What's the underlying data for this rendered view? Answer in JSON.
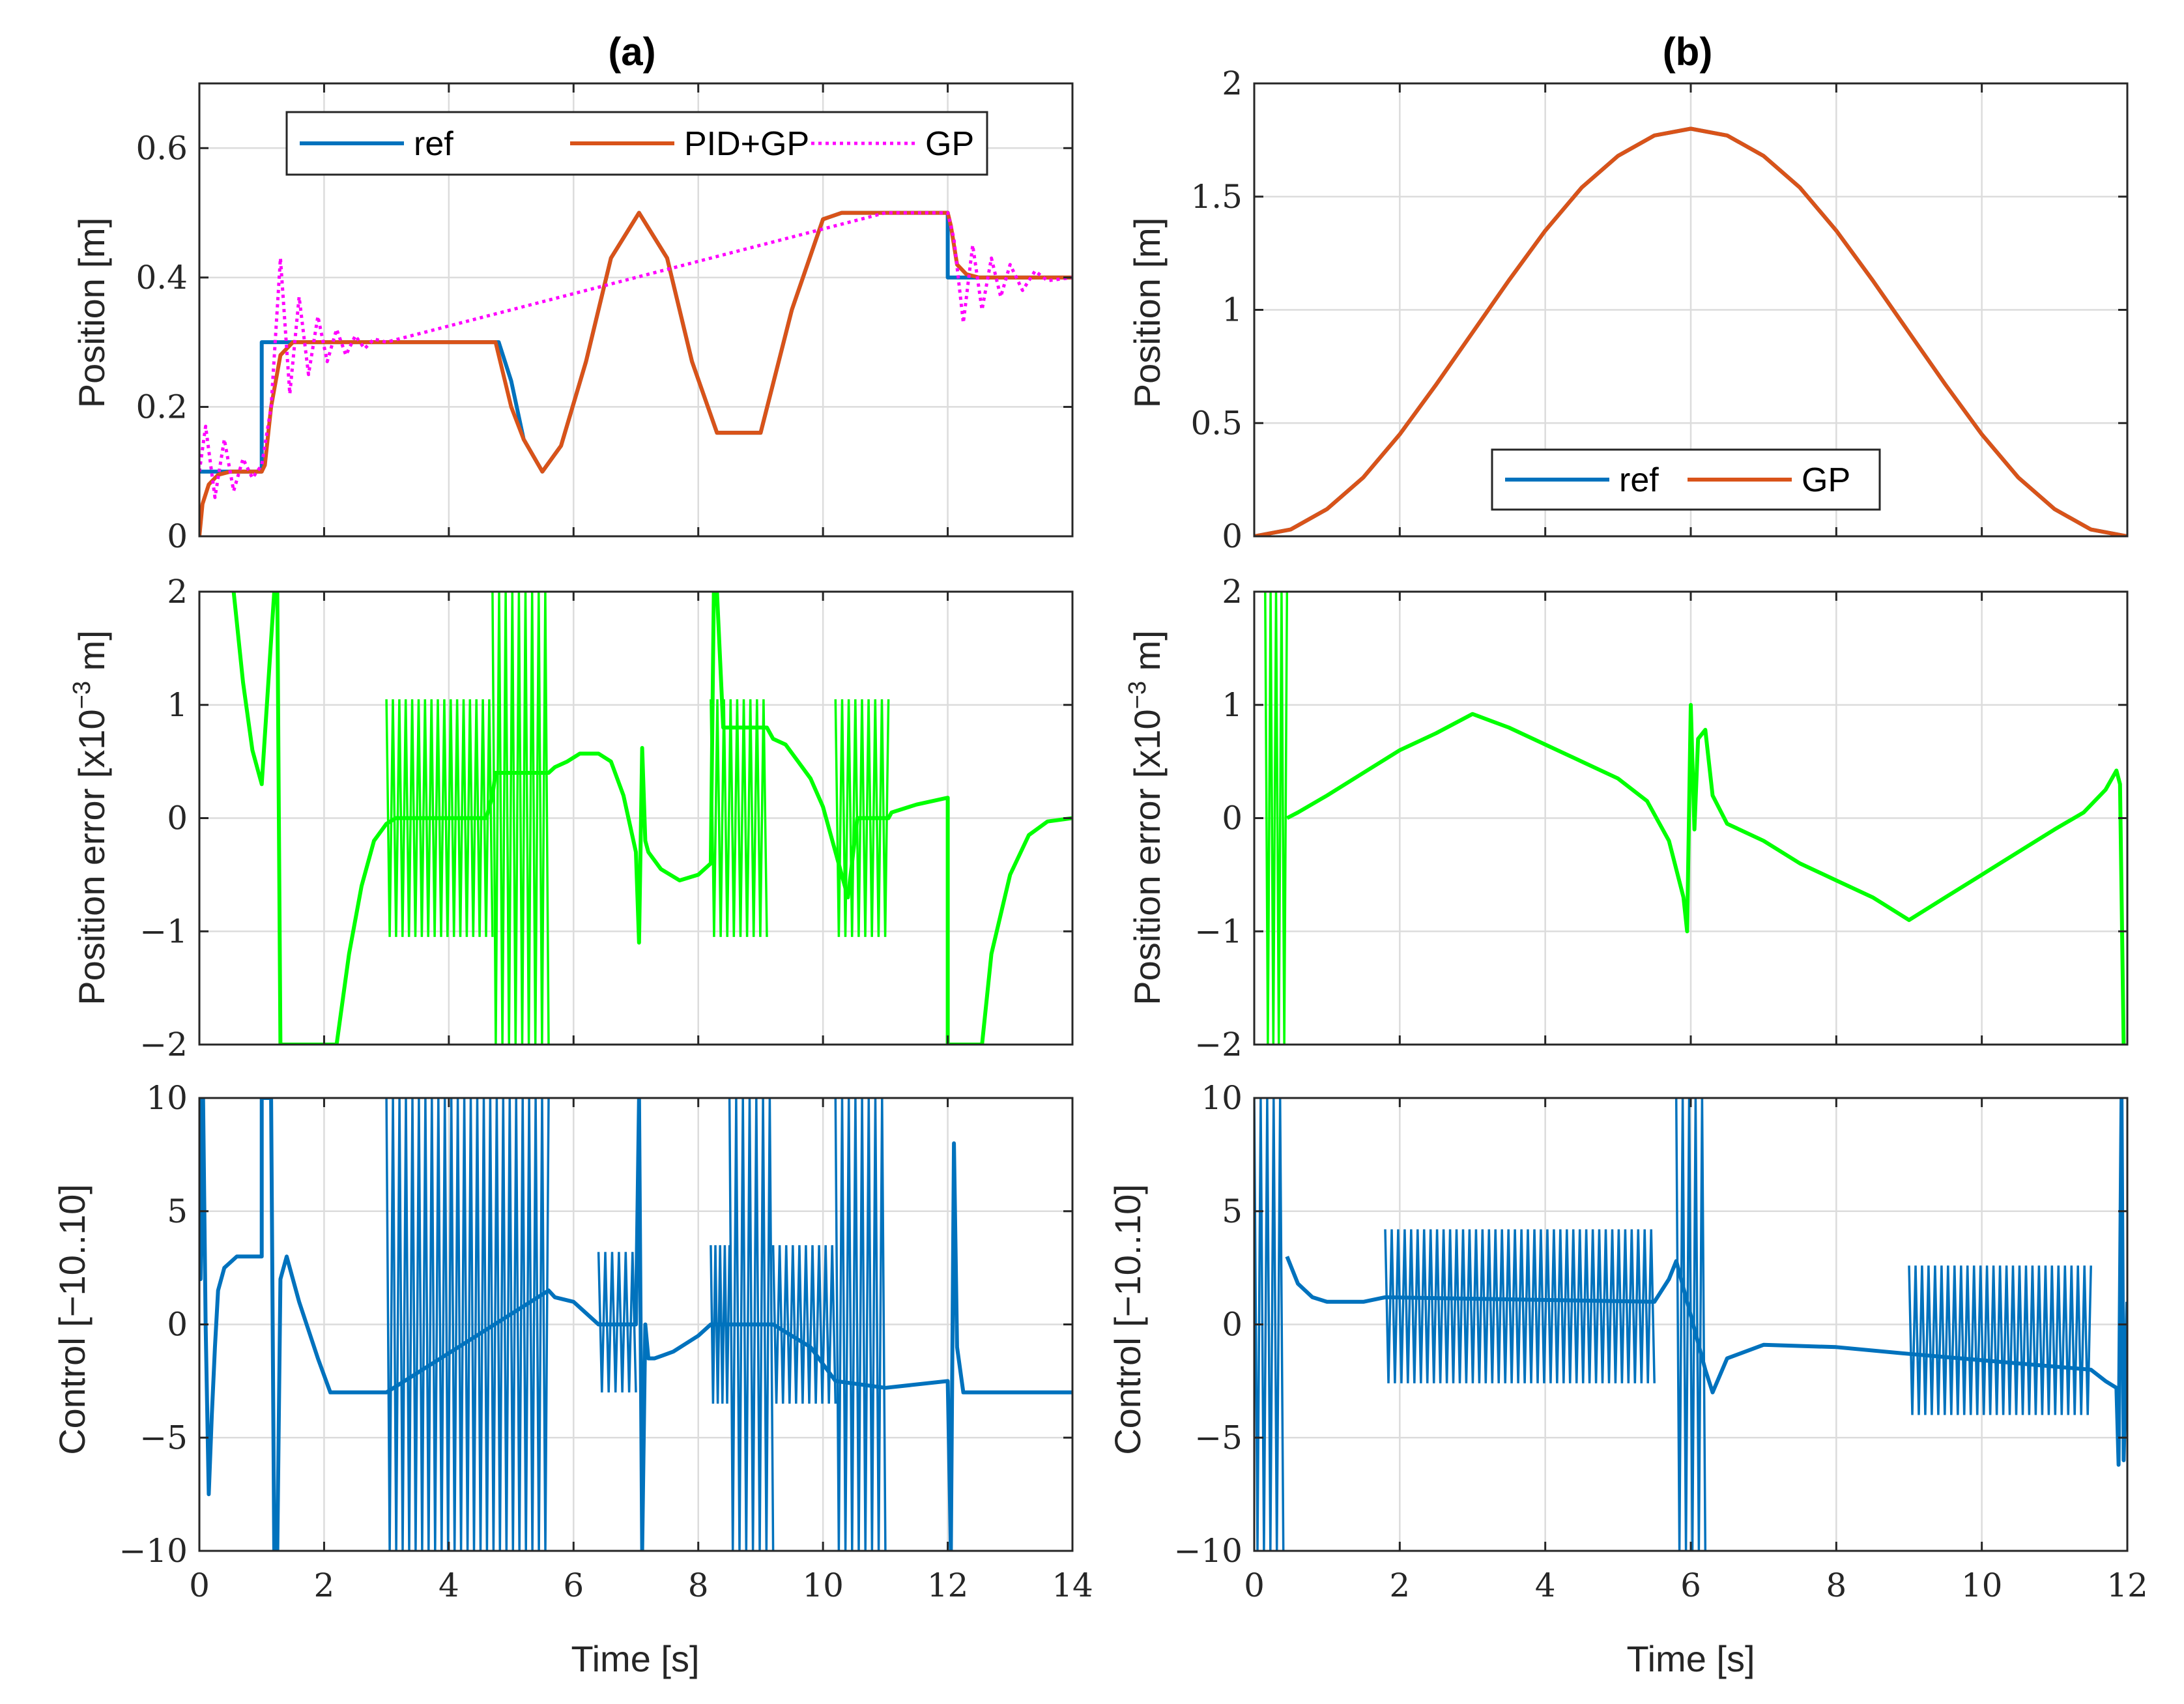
{
  "chart_data": [
    {
      "type": "line",
      "panel": "a-position",
      "title": "(a)",
      "xlabel": "",
      "ylabel": "Position [m]",
      "xlim": [
        0,
        14
      ],
      "ylim": [
        0,
        0.7
      ],
      "xticks": [
        0,
        2,
        4,
        6,
        8,
        10,
        12,
        14
      ],
      "yticks": [
        0,
        0.2,
        0.4,
        0.6
      ],
      "ytick_labels": [
        "0",
        "0.2",
        "0.4",
        "0.6"
      ],
      "legend": "top-center",
      "series": [
        {
          "name": "ref",
          "color": "#0072BD",
          "style": "solid",
          "x": [
            0,
            1.0,
            1.0,
            4.8,
            5.0,
            5.2,
            5.5,
            5.8,
            6.2,
            6.6,
            7.05,
            7.5,
            7.9,
            8.3,
            9.0,
            9.5,
            10.0,
            10.3,
            12.0,
            12.0,
            14.0
          ],
          "y": [
            0.1,
            0.1,
            0.3,
            0.3,
            0.24,
            0.15,
            0.1,
            0.14,
            0.27,
            0.43,
            0.5,
            0.43,
            0.27,
            0.16,
            0.16,
            0.35,
            0.49,
            0.5,
            0.5,
            0.4,
            0.4
          ]
        },
        {
          "name": "PID+GP",
          "color": "#D95319",
          "style": "solid",
          "x": [
            0,
            0.05,
            0.15,
            0.3,
            0.5,
            1.0,
            1.05,
            1.15,
            1.3,
            1.5,
            1.8,
            4.75,
            4.85,
            5.0,
            5.2,
            5.5,
            5.8,
            6.2,
            6.6,
            7.05,
            7.5,
            7.9,
            8.3,
            9.0,
            9.5,
            10.0,
            10.3,
            12.0,
            12.05,
            12.15,
            12.3,
            12.5,
            14.0
          ],
          "y": [
            0,
            0.05,
            0.08,
            0.095,
            0.1,
            0.1,
            0.11,
            0.2,
            0.28,
            0.3,
            0.3,
            0.3,
            0.26,
            0.2,
            0.15,
            0.1,
            0.14,
            0.27,
            0.43,
            0.5,
            0.43,
            0.27,
            0.16,
            0.16,
            0.35,
            0.49,
            0.5,
            0.5,
            0.48,
            0.42,
            0.405,
            0.4,
            0.4
          ]
        },
        {
          "name": "GP",
          "color": "#FF00FF",
          "style": "dotted",
          "x": [
            0,
            0.1,
            0.25,
            0.4,
            0.55,
            0.7,
            0.85,
            1.0,
            1.15,
            1.3,
            1.45,
            1.6,
            1.75,
            1.9,
            2.05,
            2.2,
            2.35,
            2.5,
            2.65,
            2.8,
            3.0,
            11.0,
            12.0,
            12.1,
            12.25,
            12.4,
            12.55,
            12.7,
            12.85,
            13.0,
            13.2,
            13.4,
            13.6,
            14.0
          ],
          "y": [
            0.1,
            0.17,
            0.06,
            0.15,
            0.07,
            0.12,
            0.09,
            0.11,
            0.2,
            0.43,
            0.22,
            0.37,
            0.25,
            0.34,
            0.27,
            0.32,
            0.28,
            0.31,
            0.29,
            0.305,
            0.3,
            0.5,
            0.5,
            0.46,
            0.33,
            0.45,
            0.35,
            0.43,
            0.37,
            0.42,
            0.38,
            0.41,
            0.395,
            0.4
          ]
        }
      ]
    },
    {
      "type": "line",
      "panel": "b-position",
      "title": "(b)",
      "xlabel": "",
      "ylabel": "Position [m]",
      "xlim": [
        0,
        12
      ],
      "ylim": [
        0,
        2
      ],
      "xticks": [
        0,
        2,
        4,
        6,
        8,
        10,
        12
      ],
      "yticks": [
        0,
        0.5,
        1,
        1.5,
        2
      ],
      "ytick_labels": [
        "0",
        "0.5",
        "1",
        "1.5",
        "2"
      ],
      "legend": "bottom-center",
      "series": [
        {
          "name": "ref",
          "color": "#0072BD",
          "style": "solid",
          "x": [
            0,
            0.5,
            1,
            1.5,
            2,
            2.5,
            3,
            3.5,
            4,
            4.5,
            5,
            5.5,
            6,
            6.5,
            7,
            7.5,
            8,
            8.5,
            9,
            9.5,
            10,
            10.5,
            11,
            11.5,
            12
          ],
          "y": [
            0,
            0.03,
            0.12,
            0.26,
            0.45,
            0.67,
            0.9,
            1.13,
            1.35,
            1.54,
            1.68,
            1.77,
            1.8,
            1.77,
            1.68,
            1.54,
            1.35,
            1.13,
            0.9,
            0.67,
            0.45,
            0.26,
            0.12,
            0.03,
            0
          ]
        },
        {
          "name": "GP",
          "color": "#D95319",
          "style": "solid",
          "x": [
            0,
            0.5,
            1,
            1.5,
            2,
            2.5,
            3,
            3.5,
            4,
            4.5,
            5,
            5.5,
            6,
            6.5,
            7,
            7.5,
            8,
            8.5,
            9,
            9.5,
            10,
            10.5,
            11,
            11.5,
            12
          ],
          "y": [
            0,
            0.03,
            0.12,
            0.26,
            0.45,
            0.67,
            0.9,
            1.13,
            1.35,
            1.54,
            1.68,
            1.77,
            1.8,
            1.77,
            1.68,
            1.54,
            1.35,
            1.13,
            0.9,
            0.67,
            0.45,
            0.26,
            0.12,
            0.03,
            0
          ]
        }
      ]
    },
    {
      "type": "line",
      "panel": "a-error",
      "xlabel": "",
      "ylabel": "Position error [x10^{-3} m]",
      "ylabel_parts": [
        "Position error [x10",
        "−3",
        " m]"
      ],
      "xlim": [
        0,
        14
      ],
      "ylim": [
        -2,
        2
      ],
      "xticks": [
        0,
        2,
        4,
        6,
        8,
        10,
        12,
        14
      ],
      "yticks": [
        -2,
        -1,
        0,
        1,
        2
      ],
      "ytick_labels": [
        "−2",
        "−1",
        "0",
        "1",
        "2"
      ],
      "series": [
        {
          "name": "error",
          "color": "#00FF00",
          "style": "solid",
          "x": [
            0.55,
            0.7,
            0.85,
            0.95,
            1.0,
            1.2,
            1.25,
            1.3,
            1.4,
            2.2,
            2.4,
            2.6,
            2.8,
            3.0,
            3.15,
            3.3,
            4.6,
            4.7,
            4.75,
            5.6,
            5.7,
            5.9,
            6.1,
            6.4,
            6.6,
            6.8,
            7.0,
            7.05,
            7.1,
            7.15,
            7.2,
            7.4,
            7.7,
            8.0,
            8.2,
            8.25,
            8.3,
            8.4,
            9.1,
            9.2,
            9.4,
            9.6,
            9.8,
            10.0,
            10.2,
            10.4,
            10.55,
            11.05,
            11.1,
            11.5,
            12.0,
            12.0,
            12.05,
            12.55,
            12.7,
            13.0,
            13.3,
            13.6,
            14.0
          ],
          "y": [
            2.0,
            1.2,
            0.6,
            0.4,
            0.3,
            2.0,
            2.0,
            -2.0,
            -2.0,
            -2.0,
            -1.2,
            -0.6,
            -0.2,
            -0.05,
            0,
            0,
            0,
            0.2,
            0.4,
            0.4,
            0.45,
            0.5,
            0.57,
            0.57,
            0.5,
            0.2,
            -0.3,
            -1.1,
            0.62,
            -0.2,
            -0.3,
            -0.45,
            -0.55,
            -0.5,
            -0.4,
            2.0,
            2.0,
            0.8,
            0.8,
            0.7,
            0.65,
            0.5,
            0.35,
            0.1,
            -0.3,
            -0.7,
            0,
            0,
            0.05,
            0.12,
            0.18,
            -2.0,
            -2.0,
            -2.0,
            -1.2,
            -0.5,
            -0.15,
            -0.03,
            0
          ]
        }
      ],
      "oscillation_bands": [
        [
          3.0,
          4.7,
          -1.05,
          1.05
        ],
        [
          4.7,
          5.6,
          -2.0,
          2.0
        ],
        [
          8.2,
          9.1,
          -1.05,
          1.05
        ],
        [
          10.2,
          11.05,
          -1.05,
          1.05
        ]
      ]
    },
    {
      "type": "line",
      "panel": "b-error",
      "xlabel": "",
      "ylabel": "Position error [x10^{-3} m]",
      "ylabel_parts": [
        "Position error [x10",
        "−3",
        " m]"
      ],
      "xlim": [
        0,
        12
      ],
      "ylim": [
        -2,
        2
      ],
      "xticks": [
        0,
        2,
        4,
        6,
        8,
        10,
        12
      ],
      "yticks": [
        -2,
        -1,
        0,
        1,
        2
      ],
      "ytick_labels": [
        "−2",
        "−1",
        "0",
        "1",
        "2"
      ],
      "series": [
        {
          "name": "error",
          "color": "#00FF00",
          "style": "solid",
          "x": [
            0.45,
            0.6,
            1.0,
            1.5,
            2.0,
            2.5,
            3.0,
            3.5,
            4.0,
            4.5,
            5.0,
            5.4,
            5.7,
            5.9,
            5.95,
            6.0,
            6.05,
            6.1,
            6.2,
            6.3,
            6.5,
            7.0,
            7.5,
            8.0,
            8.5,
            9.0,
            9.5,
            10.0,
            10.5,
            11.0,
            11.4,
            11.7,
            11.85,
            11.9,
            11.95
          ],
          "y": [
            0,
            0.05,
            0.2,
            0.4,
            0.6,
            0.75,
            0.92,
            0.8,
            0.65,
            0.5,
            0.35,
            0.15,
            -0.2,
            -0.7,
            -1.0,
            1.0,
            -0.1,
            0.7,
            0.78,
            0.2,
            -0.05,
            -0.2,
            -0.4,
            -0.55,
            -0.7,
            -0.9,
            -0.7,
            -0.5,
            -0.3,
            -0.1,
            0.05,
            0.25,
            0.42,
            0.3,
            -2.0
          ]
        }
      ],
      "oscillation_bands": [
        [
          0.15,
          0.45,
          -2.0,
          2.0
        ]
      ]
    },
    {
      "type": "line",
      "panel": "a-control",
      "xlabel": "Time [s]",
      "ylabel": "Control [−10..10]",
      "xlim": [
        0,
        14
      ],
      "ylim": [
        -10,
        10
      ],
      "xticks": [
        0,
        2,
        4,
        6,
        8,
        10,
        12,
        14
      ],
      "yticks": [
        -10,
        -5,
        0,
        5,
        10
      ],
      "ytick_labels": [
        "−10",
        "−5",
        "0",
        "5",
        "10"
      ],
      "series": [
        {
          "name": "control",
          "color": "#0072BD",
          "style": "solid",
          "x": [
            0,
            0.02,
            0.06,
            0.1,
            0.15,
            0.2,
            0.25,
            0.3,
            0.4,
            0.6,
            1.0,
            1.0,
            1.15,
            1.2,
            1.25,
            1.3,
            1.4,
            1.6,
            1.9,
            2.1,
            2.3,
            3.0,
            5.6,
            5.7,
            6.0,
            6.4,
            7.0,
            7.05,
            7.1,
            7.15,
            7.2,
            7.3,
            7.6,
            8.0,
            8.2,
            9.2,
            9.5,
            9.8,
            10.2,
            11.0,
            12.0,
            12.05,
            12.1,
            12.15,
            12.25,
            12.4,
            14.0
          ],
          "y": [
            10,
            2,
            10,
            0,
            -7.5,
            -4,
            -1,
            1.5,
            2.5,
            3,
            3,
            10,
            10,
            -10,
            -10,
            2.0,
            3.0,
            1,
            -1.5,
            -3.0,
            -3.0,
            -3.0,
            1.5,
            1.2,
            1.0,
            0,
            0,
            10,
            -10,
            0,
            -1.5,
            -1.5,
            -1.2,
            -0.5,
            0,
            0,
            -0.5,
            -1,
            -2.5,
            -2.8,
            -2.5,
            -10,
            8.0,
            -1,
            -3.0,
            -3.0,
            -3.0
          ]
        }
      ],
      "oscillation_bands": [
        [
          3.0,
          5.6,
          -10,
          10
        ],
        [
          6.4,
          7.0,
          -3,
          3.2
        ],
        [
          8.2,
          8.5,
          -3.5,
          3.5
        ],
        [
          8.5,
          9.2,
          -10,
          10
        ],
        [
          9.2,
          10.2,
          -3.5,
          3.5
        ],
        [
          10.2,
          11.0,
          -10,
          10
        ]
      ]
    },
    {
      "type": "line",
      "panel": "b-control",
      "xlabel": "Time [s]",
      "ylabel": "Control [−10..10]",
      "xlim": [
        0,
        12
      ],
      "ylim": [
        -10,
        10
      ],
      "xticks": [
        0,
        2,
        4,
        6,
        8,
        10,
        12
      ],
      "yticks": [
        -10,
        -5,
        0,
        5,
        10
      ],
      "ytick_labels": [
        "−10",
        "−5",
        "0",
        "5",
        "10"
      ],
      "series": [
        {
          "name": "control",
          "color": "#0072BD",
          "style": "solid",
          "x": [
            0.45,
            0.6,
            0.8,
            1.0,
            1.5,
            1.8,
            5.5,
            5.7,
            5.8,
            6.2,
            6.3,
            6.5,
            7.0,
            8.0,
            9.0,
            11.5,
            11.7,
            11.85,
            11.88,
            11.92,
            11.95,
            12.0
          ],
          "y": [
            3,
            1.8,
            1.2,
            1.0,
            1.0,
            1.2,
            1.0,
            2.0,
            2.8,
            -2,
            -3,
            -1.5,
            -0.9,
            -1.0,
            -1.3,
            -2.0,
            -2.5,
            -2.8,
            -6.2,
            10,
            -6,
            1
          ]
        }
      ],
      "oscillation_bands": [
        [
          0.0,
          0.4,
          -10,
          10
        ],
        [
          1.8,
          5.5,
          -2.6,
          4.2
        ],
        [
          5.8,
          6.2,
          -10,
          10
        ],
        [
          9.0,
          11.5,
          -4.0,
          2.6
        ]
      ]
    }
  ]
}
